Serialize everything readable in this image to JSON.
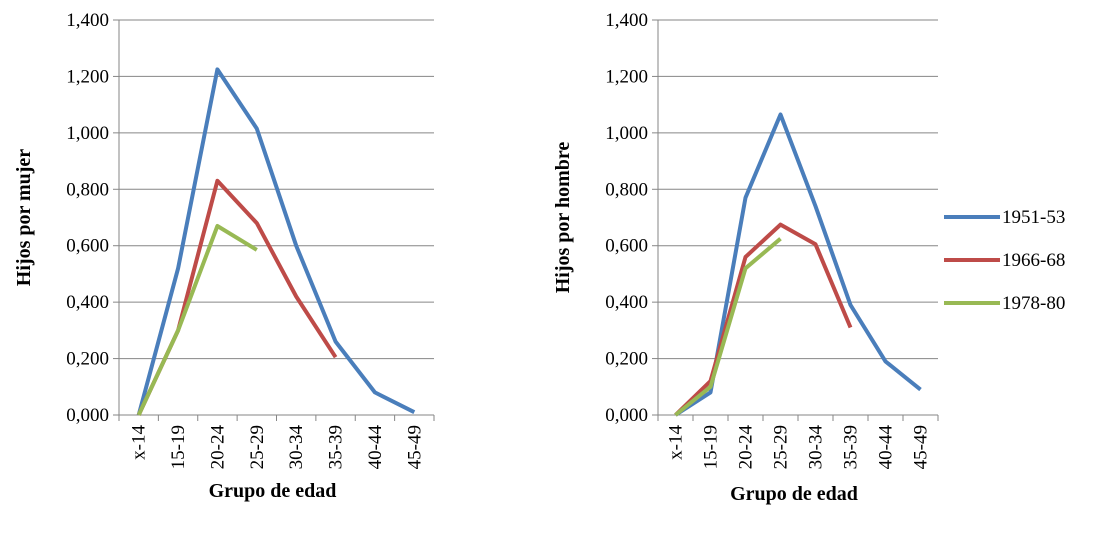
{
  "chart_data": [
    {
      "type": "line",
      "title": "",
      "xlabel": "Grupo de edad",
      "ylabel": "Hijos por mujer",
      "ylim": [
        0,
        1.4
      ],
      "yticks": [
        "0,000",
        "0,200",
        "0,400",
        "0,600",
        "0,800",
        "1,000",
        "1,200",
        "1,400"
      ],
      "categories": [
        "x-14",
        "15-19",
        "20-24",
        "25-29",
        "30-34",
        "35-39",
        "40-44",
        "45-49"
      ],
      "grid": true,
      "legend": "none",
      "series": [
        {
          "name": "1951-53",
          "color": "#4a7ebb",
          "values": [
            0.0,
            0.52,
            1.225,
            1.015,
            0.6,
            0.26,
            0.08,
            0.01
          ]
        },
        {
          "name": "1966-68",
          "color": "#be4b48",
          "values": [
            0.0,
            0.3,
            0.83,
            0.68,
            0.42,
            0.205,
            null,
            null
          ]
        },
        {
          "name": "1978-80",
          "color": "#98b954",
          "values": [
            0.0,
            0.3,
            0.67,
            0.585,
            null,
            null,
            null,
            null
          ]
        }
      ]
    },
    {
      "type": "line",
      "title": "",
      "xlabel": "Grupo de edad",
      "ylabel": "Hijos por hombre",
      "ylim": [
        0,
        1.4
      ],
      "yticks": [
        "0,000",
        "0,200",
        "0,400",
        "0,600",
        "0,800",
        "1,000",
        "1,200",
        "1,400"
      ],
      "categories": [
        "x-14",
        "15-19",
        "20-24",
        "25-29",
        "30-34",
        "35-39",
        "40-44",
        "45-49"
      ],
      "grid": true,
      "legend": "right",
      "series": [
        {
          "name": "1951-53",
          "color": "#4a7ebb",
          "values": [
            0.0,
            0.08,
            0.77,
            1.065,
            0.74,
            0.39,
            0.19,
            0.09
          ]
        },
        {
          "name": "1966-68",
          "color": "#be4b48",
          "values": [
            0.0,
            0.12,
            0.56,
            0.675,
            0.605,
            0.31,
            null,
            null
          ]
        },
        {
          "name": "1978-80",
          "color": "#98b954",
          "values": [
            0.0,
            0.1,
            0.52,
            0.625,
            null,
            null,
            null,
            null
          ]
        }
      ]
    }
  ]
}
